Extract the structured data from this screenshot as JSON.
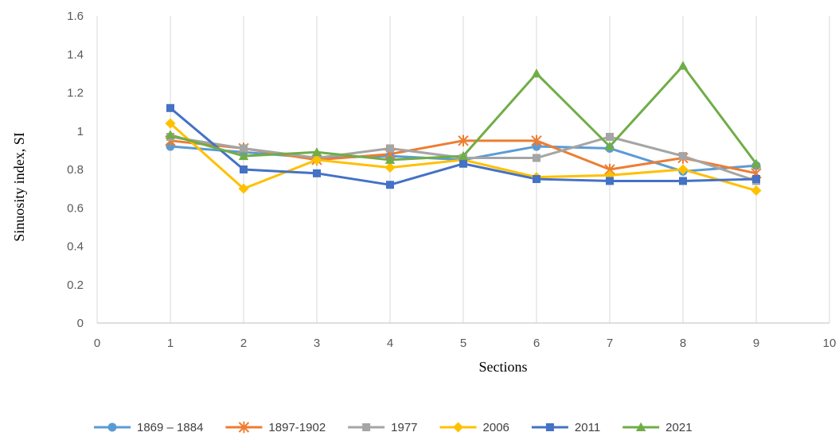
{
  "chart_data": {
    "type": "line",
    "title": "",
    "xlabel": "Sections",
    "ylabel": "Sinuosity index, SI",
    "xlim": [
      0,
      10
    ],
    "ylim": [
      0,
      1.6
    ],
    "x_ticks": [
      0,
      1,
      2,
      3,
      4,
      5,
      6,
      7,
      8,
      9,
      10
    ],
    "y_ticks": [
      0,
      0.2,
      0.4,
      0.6,
      0.8,
      1,
      1.2,
      1.4,
      1.6
    ],
    "y_tick_labels": [
      "0",
      "0.2",
      "0.4",
      "0.6",
      "0.8",
      "1",
      "1.2",
      "1.4",
      "1.6"
    ],
    "grid": "vertical gridlines only",
    "legend_position": "bottom",
    "x": [
      1,
      2,
      3,
      4,
      5,
      6,
      7,
      8,
      9
    ],
    "series": [
      {
        "name": "1869 – 1884",
        "color": "#5b9bd5",
        "marker": "circle",
        "values": [
          0.92,
          0.89,
          0.86,
          0.87,
          0.85,
          0.92,
          0.91,
          0.79,
          0.82
        ]
      },
      {
        "name": "1897-1902",
        "color": "#ed7d31",
        "marker": "star",
        "values": [
          0.95,
          0.91,
          0.85,
          0.88,
          0.95,
          0.95,
          0.8,
          0.86,
          0.78
        ]
      },
      {
        "name": "1977",
        "color": "#a5a5a5",
        "marker": "square",
        "values": [
          0.97,
          0.91,
          0.86,
          0.91,
          0.86,
          0.86,
          0.97,
          0.87,
          0.74
        ]
      },
      {
        "name": "2006",
        "color": "#ffc000",
        "marker": "diamond",
        "values": [
          1.04,
          0.7,
          0.85,
          0.81,
          0.85,
          0.76,
          0.77,
          0.8,
          0.69
        ]
      },
      {
        "name": "2011",
        "color": "#4472c4",
        "marker": "square",
        "values": [
          1.12,
          0.8,
          0.78,
          0.72,
          0.83,
          0.75,
          0.74,
          0.74,
          0.75
        ]
      },
      {
        "name": "2021",
        "color": "#70ad47",
        "marker": "triangle",
        "values": [
          0.98,
          0.87,
          0.89,
          0.85,
          0.87,
          1.3,
          0.92,
          1.34,
          0.83
        ]
      }
    ]
  }
}
